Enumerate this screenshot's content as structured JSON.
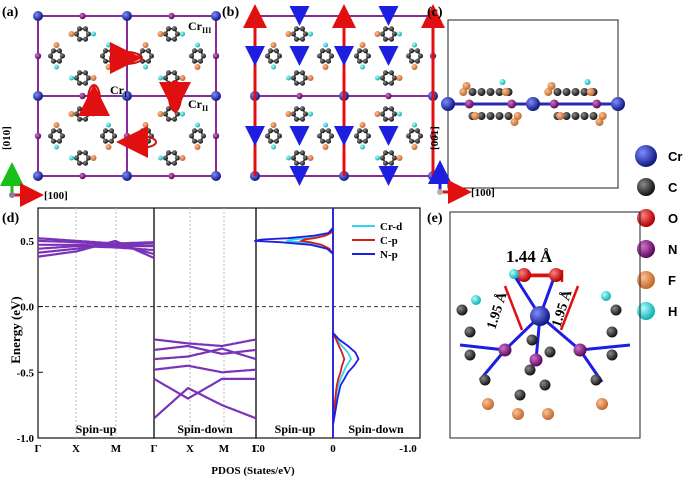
{
  "panels": {
    "a": {
      "label": "(a)",
      "site_labels": {
        "cr3": "Cr",
        "cr3_sub": "III",
        "cr1": "Cr",
        "cr1_sub": "I",
        "cr2": "Cr",
        "cr2_sub": "II"
      },
      "axes": {
        "vertical": "[010]",
        "horizontal": "[100]"
      }
    },
    "b": {
      "label": "(b)"
    },
    "c": {
      "label": "(c)",
      "axes": {
        "vertical": "[001]",
        "horizontal": "[100]"
      }
    },
    "d": {
      "label": "(d)"
    },
    "e": {
      "label": "(e)",
      "bond_short": "1.44 Å",
      "bond_left": "1.95 Å",
      "bond_right": "1.95 Å"
    }
  },
  "legend": [
    {
      "symbol": "Cr",
      "color": "#1f2aa8"
    },
    {
      "symbol": "C",
      "color": "#2b2b2b"
    },
    {
      "symbol": "O",
      "color": "#e01010"
    },
    {
      "symbol": "N",
      "color": "#8a1f8a"
    },
    {
      "symbol": "F",
      "color": "#e08a50"
    },
    {
      "symbol": "H",
      "color": "#33d6d6"
    }
  ],
  "chart_data": {
    "type": "line",
    "ylabel": "Energy (eV)",
    "xlabel": "PDOS (States/eV)",
    "ylim": [
      -1.0,
      0.75
    ],
    "yticks": [
      "-1.0",
      "-0.5",
      "0.0",
      "0.5"
    ],
    "yticks_values": [
      -1.0,
      -0.5,
      0.0,
      0.5
    ],
    "band_kpoints": [
      "Γ",
      "X",
      "M",
      "Γ",
      "X",
      "M",
      "Γ"
    ],
    "pdos_ticks": [
      "1.0",
      "0",
      "-1.0"
    ],
    "pdos_ticks_values": [
      1.0,
      0,
      -1.0
    ],
    "fermi_level": 0.0,
    "subpanel_labels": [
      "Spin-up",
      "Spin-down",
      "Spin-up",
      "Spin-down"
    ],
    "pdos_legend": [
      {
        "name": "Cr-d",
        "color": "#33d6e8"
      },
      {
        "name": "C-p",
        "color": "#d41c1c"
      },
      {
        "name": "N-p",
        "color": "#1e1ee0"
      }
    ],
    "spin_up_bands": [
      {
        "values": [
          0.52,
          0.5,
          0.48,
          0.49
        ]
      },
      {
        "values": [
          0.5,
          0.49,
          0.47,
          0.48
        ]
      },
      {
        "values": [
          0.47,
          0.47,
          0.46,
          0.46
        ]
      },
      {
        "values": [
          0.44,
          0.46,
          0.45,
          0.43
        ]
      },
      {
        "values": [
          0.41,
          0.44,
          0.48,
          0.4
        ]
      },
      {
        "values": [
          0.38,
          0.42,
          0.5,
          0.37
        ]
      }
    ],
    "spin_down_bands": [
      {
        "values": [
          -0.25,
          -0.28,
          -0.3,
          -0.25
        ]
      },
      {
        "values": [
          -0.33,
          -0.3,
          -0.36,
          -0.33
        ]
      },
      {
        "values": [
          -0.4,
          -0.38,
          -0.32,
          -0.4
        ]
      },
      {
        "values": [
          -0.48,
          -0.45,
          -0.5,
          -0.48
        ]
      },
      {
        "values": [
          -0.55,
          -0.7,
          -0.55,
          -0.55
        ]
      },
      {
        "values": [
          -0.85,
          -0.62,
          -0.75,
          -0.85
        ]
      }
    ],
    "pdos_spin_up": {
      "energies": [
        0.4,
        0.44,
        0.47,
        0.49,
        0.5,
        0.51,
        0.52,
        0.54,
        0.56,
        0.6
      ],
      "Cr-d": [
        0,
        0.05,
        0.2,
        0.45,
        0.62,
        0.55,
        0.35,
        0.15,
        0.05,
        0
      ],
      "C-p": [
        0,
        0.05,
        0.15,
        0.3,
        0.42,
        0.38,
        0.25,
        0.1,
        0.03,
        0
      ],
      "N-p": [
        0,
        0.08,
        0.3,
        0.7,
        1.05,
        0.95,
        0.6,
        0.25,
        0.06,
        0
      ]
    },
    "pdos_spin_down": {
      "energies": [
        -0.2,
        -0.25,
        -0.3,
        -0.35,
        -0.4,
        -0.45,
        -0.5,
        -0.55,
        -0.6,
        -0.65,
        -0.7,
        -0.8,
        -0.9
      ],
      "Cr-d": [
        0,
        -0.05,
        -0.12,
        -0.2,
        -0.24,
        -0.18,
        -0.14,
        -0.1,
        -0.07,
        -0.05,
        -0.04,
        -0.02,
        0
      ],
      "C-p": [
        0,
        -0.04,
        -0.08,
        -0.12,
        -0.15,
        -0.12,
        -0.1,
        -0.07,
        -0.05,
        -0.04,
        -0.03,
        -0.01,
        0
      ],
      "N-p": [
        0,
        -0.08,
        -0.2,
        -0.3,
        -0.34,
        -0.28,
        -0.2,
        -0.15,
        -0.1,
        -0.08,
        -0.06,
        -0.03,
        0
      ]
    }
  }
}
